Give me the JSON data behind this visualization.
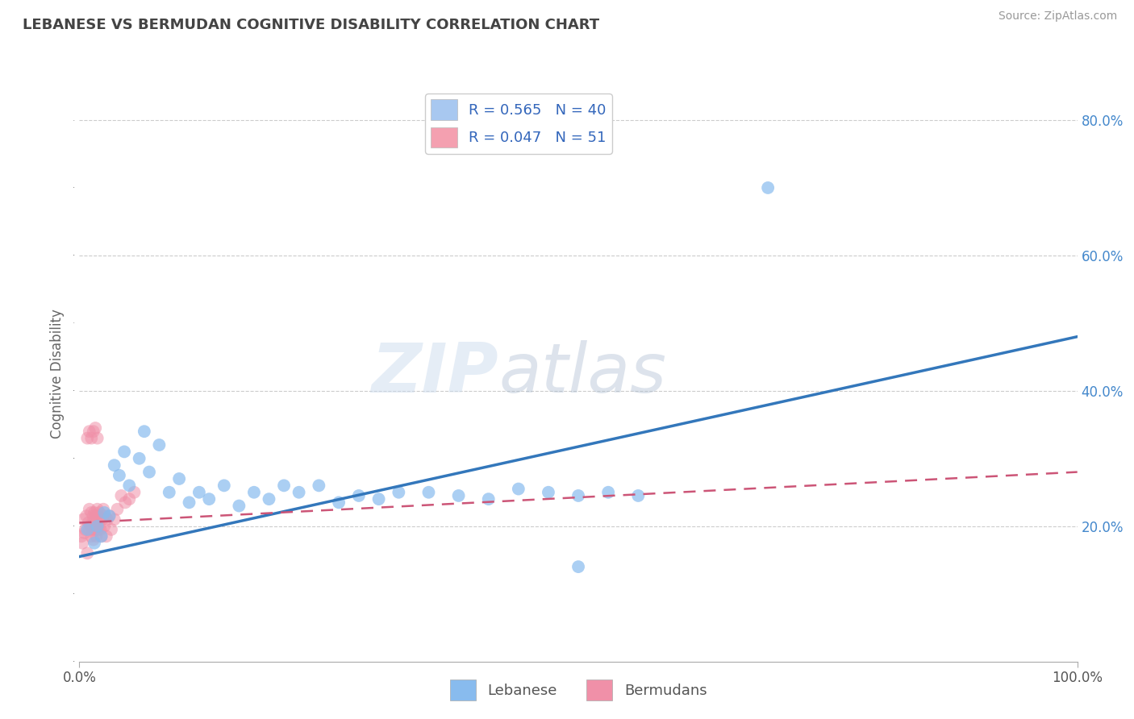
{
  "title": "LEBANESE VS BERMUDAN COGNITIVE DISABILITY CORRELATION CHART",
  "source": "Source: ZipAtlas.com",
  "ylabel": "Cognitive Disability",
  "watermark_1": "ZIP",
  "watermark_2": "atlas",
  "legend_entries": [
    {
      "label": "Lebanese",
      "color": "#a8c8f0",
      "R": 0.565,
      "N": 40
    },
    {
      "label": "Bermudans",
      "color": "#f4a0b0",
      "R": 0.047,
      "N": 51
    }
  ],
  "xlim": [
    0.0,
    1.0
  ],
  "ylim": [
    0.0,
    0.85
  ],
  "y_ticks_right": [
    0.2,
    0.4,
    0.6,
    0.8
  ],
  "y_tick_labels_right": [
    "20.0%",
    "40.0%",
    "60.0%",
    "80.0%"
  ],
  "background_color": "#ffffff",
  "grid_color": "#cccccc",
  "title_color": "#444444",
  "axis_label_color": "#666666",
  "blue_scatter": {
    "x": [
      0.008,
      0.015,
      0.018,
      0.022,
      0.025,
      0.03,
      0.035,
      0.04,
      0.045,
      0.05,
      0.06,
      0.065,
      0.07,
      0.08,
      0.09,
      0.1,
      0.11,
      0.12,
      0.13,
      0.145,
      0.16,
      0.175,
      0.19,
      0.205,
      0.22,
      0.24,
      0.26,
      0.28,
      0.3,
      0.32,
      0.35,
      0.38,
      0.41,
      0.44,
      0.47,
      0.5,
      0.53,
      0.56,
      0.69,
      0.5
    ],
    "y": [
      0.195,
      0.175,
      0.2,
      0.185,
      0.22,
      0.215,
      0.29,
      0.275,
      0.31,
      0.26,
      0.3,
      0.34,
      0.28,
      0.32,
      0.25,
      0.27,
      0.235,
      0.25,
      0.24,
      0.26,
      0.23,
      0.25,
      0.24,
      0.26,
      0.25,
      0.26,
      0.235,
      0.245,
      0.24,
      0.25,
      0.25,
      0.245,
      0.24,
      0.255,
      0.25,
      0.245,
      0.25,
      0.245,
      0.7,
      0.14
    ]
  },
  "pink_scatter": {
    "x": [
      0.002,
      0.003,
      0.004,
      0.005,
      0.006,
      0.007,
      0.008,
      0.009,
      0.01,
      0.01,
      0.011,
      0.012,
      0.012,
      0.013,
      0.013,
      0.014,
      0.014,
      0.015,
      0.015,
      0.016,
      0.016,
      0.017,
      0.017,
      0.018,
      0.018,
      0.019,
      0.019,
      0.02,
      0.02,
      0.021,
      0.022,
      0.023,
      0.024,
      0.025,
      0.026,
      0.027,
      0.028,
      0.03,
      0.032,
      0.035,
      0.038,
      0.042,
      0.046,
      0.05,
      0.055,
      0.008,
      0.01,
      0.012,
      0.014,
      0.016,
      0.018
    ],
    "y": [
      0.185,
      0.175,
      0.21,
      0.19,
      0.195,
      0.215,
      0.16,
      0.205,
      0.225,
      0.195,
      0.2,
      0.185,
      0.22,
      0.205,
      0.195,
      0.215,
      0.18,
      0.2,
      0.22,
      0.195,
      0.21,
      0.185,
      0.215,
      0.2,
      0.225,
      0.195,
      0.215,
      0.2,
      0.22,
      0.195,
      0.185,
      0.21,
      0.225,
      0.2,
      0.215,
      0.185,
      0.21,
      0.215,
      0.195,
      0.21,
      0.225,
      0.245,
      0.235,
      0.24,
      0.25,
      0.33,
      0.34,
      0.33,
      0.34,
      0.345,
      0.33
    ]
  },
  "blue_line": {
    "x_start": 0.0,
    "x_end": 1.0,
    "y_start": 0.155,
    "y_end": 0.48
  },
  "pink_line": {
    "x_start": 0.0,
    "x_end": 1.0,
    "y_start": 0.205,
    "y_end": 0.28
  },
  "blue_line_color": "#3377bb",
  "pink_line_color": "#cc5577",
  "blue_dot_color": "#88bbee",
  "pink_dot_color": "#f090a8"
}
